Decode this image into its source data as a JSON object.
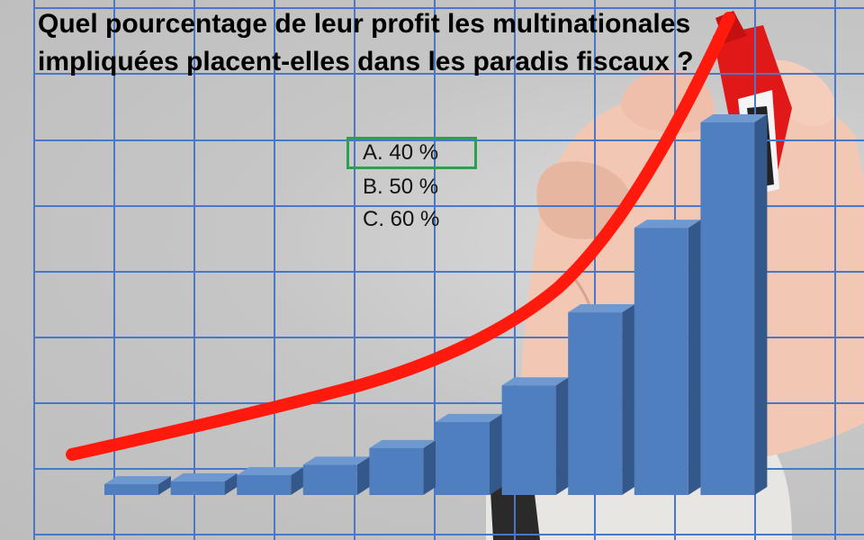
{
  "question": {
    "line1": "Quel pourcentage de leur profit les multinationales",
    "line2": "impliquées placent-elles dans les paradis fiscaux ?"
  },
  "answers": [
    {
      "label": "A. 40 %",
      "selected": true
    },
    {
      "label": "B. 50 %",
      "selected": false
    },
    {
      "label": "C. 60 %",
      "selected": false
    }
  ],
  "colors": {
    "grid": "#4a78c8",
    "bar_front": "#4f7fbf",
    "bar_side": "#35588a",
    "bar_top": "#6d98d0",
    "curve": "#ff1a0d",
    "answer_border": "#2e9e4f"
  },
  "chart_data": {
    "type": "bar",
    "values": [
      1.0,
      1.3,
      1.9,
      2.9,
      4.5,
      7.0,
      10.5,
      17.5,
      25.6,
      35.7
    ],
    "curve": "exponential-trend",
    "grid": true
  }
}
